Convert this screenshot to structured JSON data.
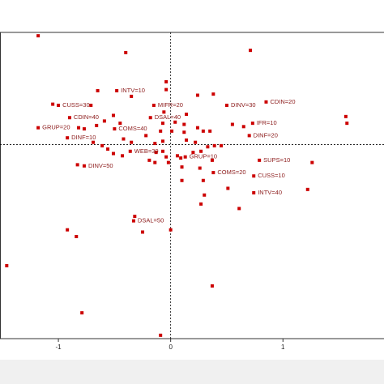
{
  "chart_data": {
    "type": "scatter",
    "xlim": [
      -1.52,
      1.9
    ],
    "xticks": [
      -1,
      0,
      1
    ],
    "ylim": [
      -1.73,
      1.0
    ],
    "series": [
      {
        "color": "#cc0000",
        "x": [
          -1.18,
          0.71,
          -0.4,
          -0.65,
          -0.35,
          -0.04,
          -0.04,
          0.24,
          0.38,
          -0.71,
          -1.05,
          1.56,
          1.57,
          -0.06,
          -0.51,
          -0.59,
          0.14,
          0.12,
          -0.66,
          -0.82,
          -0.77,
          -0.45,
          -0.07,
          0.04,
          0.12,
          0.24,
          0.29,
          0.55,
          0.35,
          0.65,
          -0.09,
          0.01,
          -0.22,
          -0.69,
          -0.61,
          -0.56,
          -0.42,
          -0.35,
          -0.14,
          -0.07,
          0.14,
          0.22,
          0.33,
          0.39,
          0.45,
          -0.51,
          -0.43,
          -0.13,
          -0.07,
          -0.04,
          0.06,
          0.09,
          0.2,
          0.27,
          -0.19,
          -0.14,
          -0.02,
          1.26,
          -0.83,
          0.1,
          0.26,
          0.37,
          0.1,
          0.29,
          1.22,
          0.51,
          0.3,
          0.61,
          -0.32,
          -0.92,
          -0.84,
          -0.25,
          0.0,
          -1.46,
          0.37,
          -0.79,
          -0.09,
          0.27
        ],
        "values": [
          0.97,
          0.84,
          0.82,
          0.48,
          0.43,
          0.56,
          0.49,
          0.44,
          0.45,
          0.35,
          0.36,
          0.25,
          0.19,
          0.29,
          0.26,
          0.21,
          0.27,
          0.18,
          0.17,
          0.15,
          0.14,
          0.19,
          0.19,
          0.2,
          0.11,
          0.15,
          0.12,
          0.18,
          0.12,
          0.16,
          0.12,
          0.12,
          0.08,
          0.02,
          -0.01,
          -0.04,
          0.05,
          0.02,
          0.01,
          0.03,
          0.04,
          0.02,
          -0.02,
          -0.01,
          -0.01,
          -0.08,
          -0.1,
          -0.07,
          -0.06,
          -0.11,
          -0.1,
          -0.12,
          -0.07,
          -0.06,
          -0.14,
          -0.16,
          -0.16,
          -0.16,
          -0.18,
          -0.2,
          -0.21,
          -0.14,
          -0.32,
          -0.32,
          -0.4,
          -0.39,
          -0.45,
          -0.57,
          -0.64,
          -0.76,
          -0.82,
          -0.78,
          -0.76,
          -1.08,
          -1.26,
          -1.5,
          -1.7,
          -0.53
        ]
      },
      {
        "color": "#cc0000",
        "x": [
          -0.48,
          -1.0,
          -0.15,
          0.5,
          0.85,
          -0.9,
          -0.18,
          0.73,
          -1.18,
          -0.5,
          -0.92,
          0.7,
          -0.36,
          0.13,
          0.79,
          -0.77,
          0.38,
          0.74,
          0.74,
          -0.33
        ],
        "values": [
          0.48,
          0.35,
          0.35,
          0.35,
          0.38,
          0.24,
          0.24,
          0.19,
          0.15,
          0.14,
          0.06,
          0.08,
          -0.06,
          -0.11,
          -0.14,
          -0.19,
          -0.25,
          -0.28,
          -0.43,
          -0.68
        ],
        "labels": [
          "INTV=10",
          "CUSS=30",
          "MIFR=20",
          "DINV=30",
          "CDIN=20",
          "CDIN=40",
          "DSAL=40",
          "IFR=10",
          "GRUP=20",
          "COMS=40",
          "DINF=10",
          "DINF=20",
          "WEB=30",
          "GRUP=10",
          "SUPS=10",
          "DINV=50",
          "COMS=20",
          "CUSS=10",
          "INTV=40",
          "DSAL=50"
        ]
      }
    ]
  }
}
